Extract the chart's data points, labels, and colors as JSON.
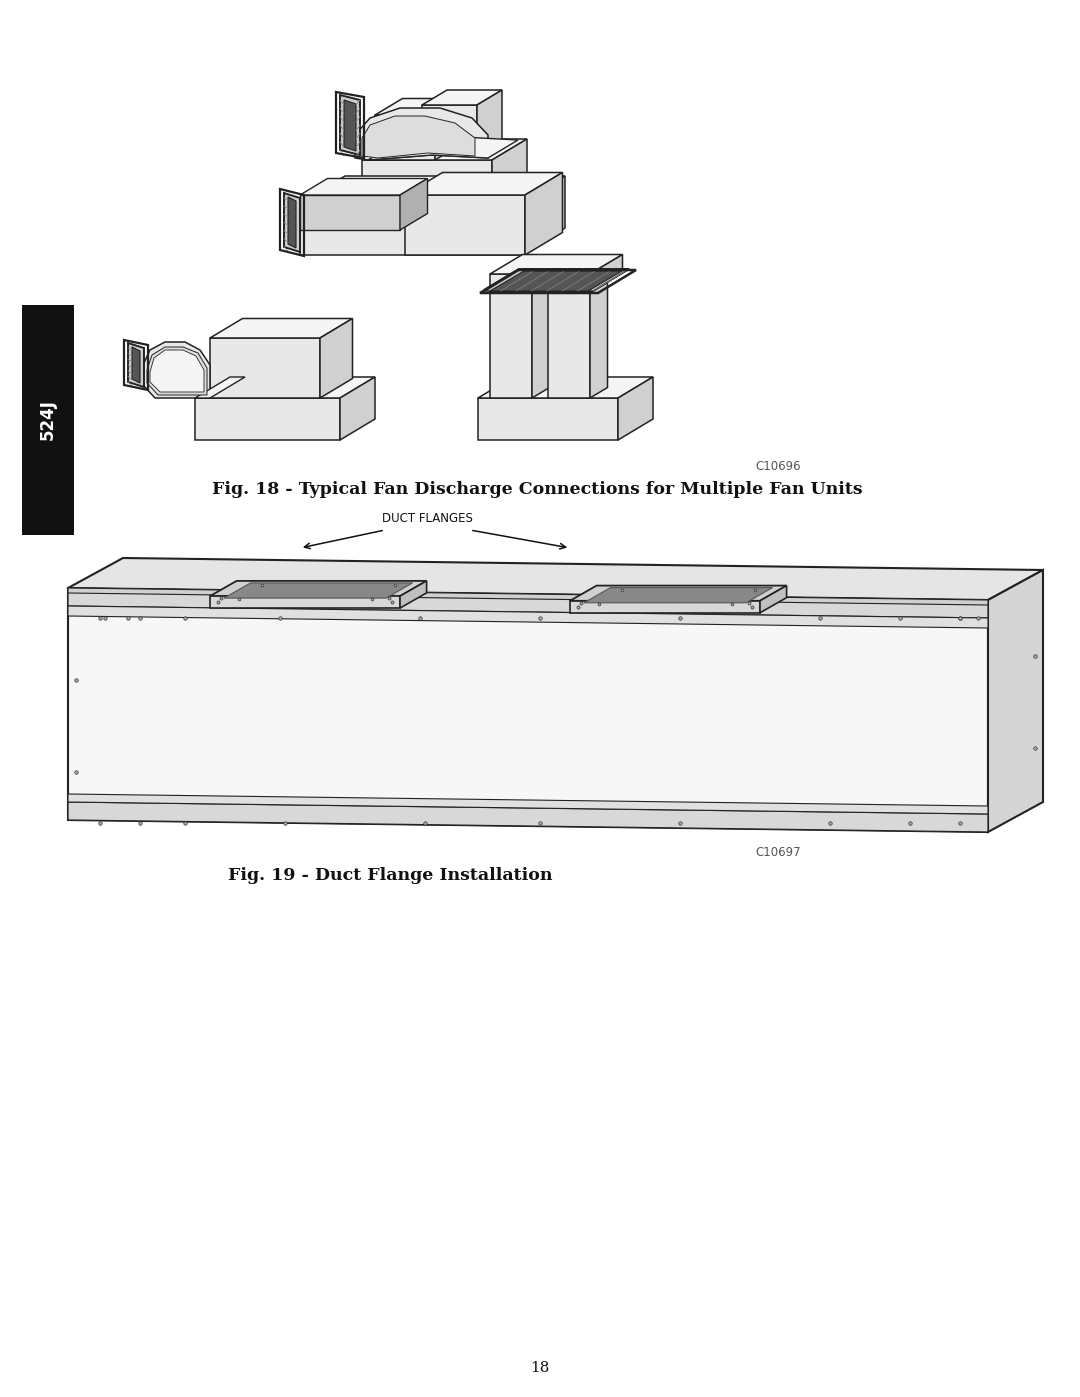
{
  "page_width": 10.8,
  "page_height": 13.97,
  "dpi": 100,
  "background_color": "#ffffff",
  "sidebar_text": "524J",
  "fig18_caption": "Fig. 18 - Typical Fan Discharge Connections for Multiple Fan Units",
  "fig18_code": "C10696",
  "fig19_caption": "Fig. 19 - Duct Flange Installation",
  "fig19_code": "C10697",
  "page_number": "18",
  "lc": "#222222",
  "fc_white": "#f5f5f5",
  "fc_light": "#e8e8e8",
  "fc_mid": "#d0d0d0",
  "fc_dark": "#b0b0b0"
}
